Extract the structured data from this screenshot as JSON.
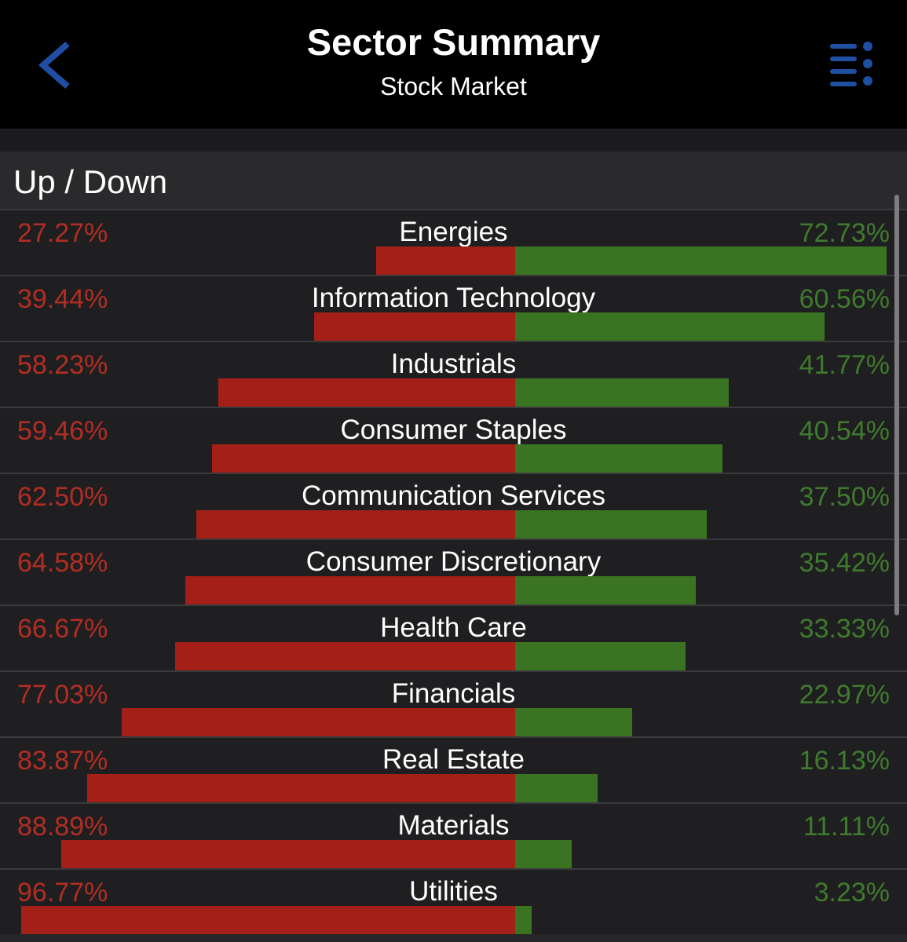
{
  "header": {
    "title": "Sector Summary",
    "subtitle": "Stock Market",
    "back_icon": "chevron-left-icon",
    "menu_icon": "list-menu-icon",
    "accent_color": "#1f4ea3"
  },
  "section": {
    "title": "Up / Down"
  },
  "colors": {
    "down": "#b22d22",
    "up": "#3f7a2d",
    "down_bar": "#a31f17",
    "up_bar": "#3a7422"
  },
  "sectors": [
    {
      "name": "Energies",
      "down_label": "27.27%",
      "up_label": "72.73%",
      "down": 27.27,
      "up": 72.73
    },
    {
      "name": "Information Technology",
      "down_label": "39.44%",
      "up_label": "60.56%",
      "down": 39.44,
      "up": 60.56
    },
    {
      "name": "Industrials",
      "down_label": "58.23%",
      "up_label": "41.77%",
      "down": 58.23,
      "up": 41.77
    },
    {
      "name": "Consumer Staples",
      "down_label": "59.46%",
      "up_label": "40.54%",
      "down": 59.46,
      "up": 40.54
    },
    {
      "name": "Communication Services",
      "down_label": "62.50%",
      "up_label": "37.50%",
      "down": 62.5,
      "up": 37.5
    },
    {
      "name": "Consumer Discretionary",
      "down_label": "64.58%",
      "up_label": "35.42%",
      "down": 64.58,
      "up": 35.42
    },
    {
      "name": "Health Care",
      "down_label": "66.67%",
      "up_label": "33.33%",
      "down": 66.67,
      "up": 33.33
    },
    {
      "name": "Financials",
      "down_label": "77.03%",
      "up_label": "22.97%",
      "down": 77.03,
      "up": 22.97
    },
    {
      "name": "Real Estate",
      "down_label": "83.87%",
      "up_label": "16.13%",
      "down": 83.87,
      "up": 16.13
    },
    {
      "name": "Materials",
      "down_label": "88.89%",
      "up_label": "11.11%",
      "down": 88.89,
      "up": 11.11
    },
    {
      "name": "Utilities",
      "down_label": "96.77%",
      "up_label": "3.23%",
      "down": 96.77,
      "up": 3.23
    }
  ]
}
